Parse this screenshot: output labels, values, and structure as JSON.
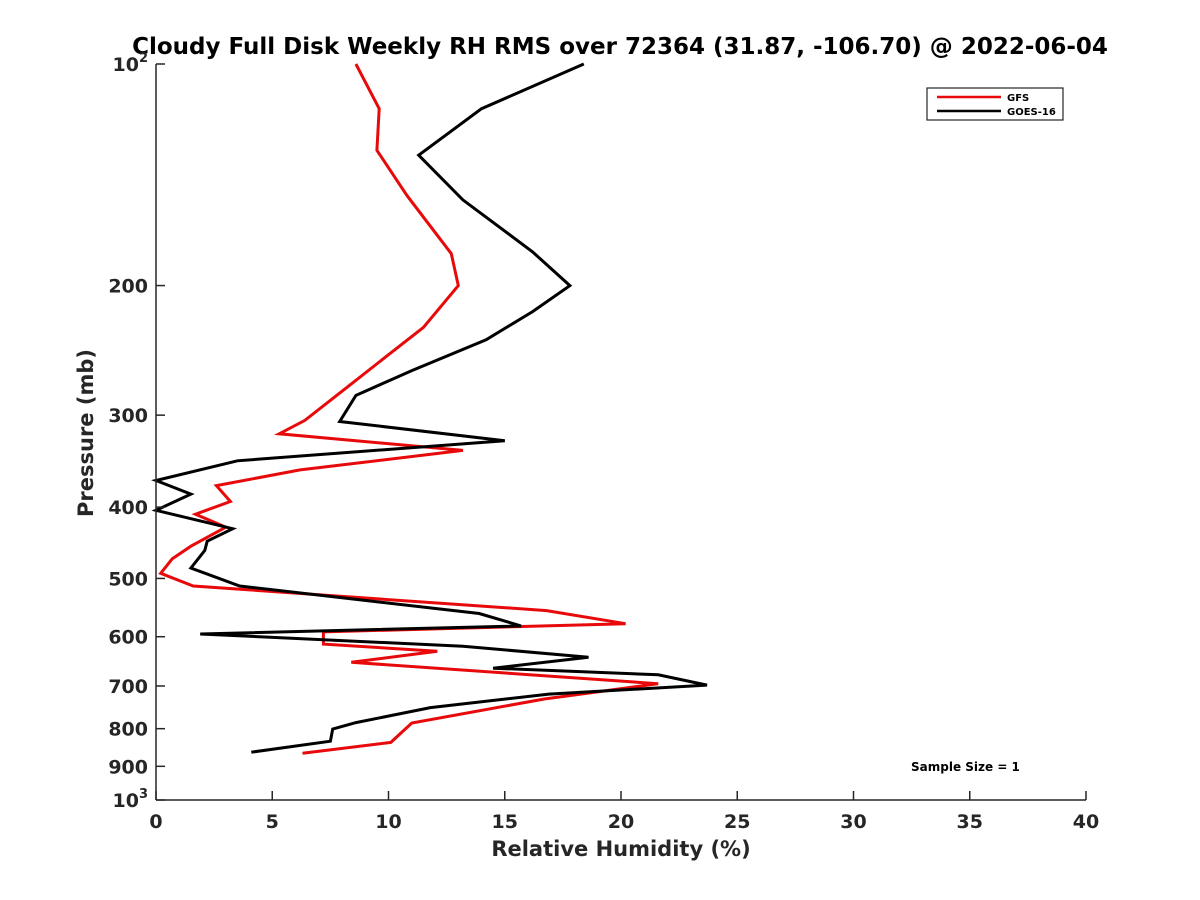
{
  "chart_data": {
    "type": "line",
    "title": "Cloudy Full Disk Weekly RH RMS over 72364 (31.87, -106.70) @ 2022-06-04",
    "xlabel": "Relative Humidity (%)",
    "ylabel": "Pressure (mb)",
    "xlim": [
      0,
      40
    ],
    "ylim": [
      100,
      1000
    ],
    "y_scale": "log",
    "y_reversed": true,
    "grid": false,
    "legend_position": "top-right",
    "x_ticks": [
      "0",
      "5",
      "10",
      "15",
      "20",
      "25",
      "30",
      "35",
      "40"
    ],
    "y_ticks": [
      {
        "value": 100,
        "base": "10",
        "exp": "2"
      },
      {
        "value": 200,
        "label": "200"
      },
      {
        "value": 300,
        "label": "300"
      },
      {
        "value": 400,
        "label": "400"
      },
      {
        "value": 500,
        "label": "500"
      },
      {
        "value": 600,
        "label": "600"
      },
      {
        "value": 700,
        "label": "700"
      },
      {
        "value": 800,
        "label": "800"
      },
      {
        "value": 900,
        "label": "900"
      },
      {
        "value": 1000,
        "base": "10",
        "exp": "3"
      }
    ],
    "series": [
      {
        "name": "GFS",
        "color": "#e8090b",
        "x": [
          8.6,
          9.6,
          9.5,
          10.8,
          12.7,
          13.0,
          11.5,
          9.6,
          7.9,
          6.4,
          5.3,
          13.2,
          6.2,
          2.6,
          3.2,
          1.7,
          3.0,
          1.5,
          0.7,
          0.2,
          1.6,
          16.8,
          20.2,
          7.2,
          7.2,
          12.1,
          8.4,
          21.6,
          16.7,
          11.0,
          10.1,
          6.3
        ],
        "y": [
          100,
          115,
          131,
          151,
          181,
          200,
          228,
          254,
          280,
          305,
          318,
          335,
          356,
          374,
          393,
          409,
          426,
          452,
          470,
          492,
          512,
          553,
          576,
          591,
          614,
          628,
          650,
          695,
          729,
          786,
          835,
          864
        ]
      },
      {
        "name": "GOES-16",
        "color": "#000000",
        "x": [
          18.4,
          14.0,
          11.3,
          13.2,
          16.2,
          17.8,
          16.2,
          14.2,
          11.0,
          8.6,
          7.9,
          15.0,
          3.5,
          0.0,
          1.5,
          0.0,
          3.3,
          2.2,
          2.1,
          1.5,
          3.6,
          13.9,
          15.7,
          1.9,
          13.2,
          18.6,
          14.5,
          21.6,
          23.7,
          16.9,
          11.8,
          8.6,
          7.6,
          7.5,
          4.1
        ],
        "y": [
          100,
          115,
          133,
          153,
          180,
          200,
          217,
          237,
          261,
          282,
          306,
          325,
          346,
          368,
          384,
          404,
          428,
          445,
          458,
          484,
          512,
          558,
          580,
          595,
          618,
          640,
          662,
          676,
          698,
          718,
          749,
          785,
          801,
          832,
          861
        ]
      }
    ],
    "annotations": [
      "Sample Size = 1"
    ]
  }
}
